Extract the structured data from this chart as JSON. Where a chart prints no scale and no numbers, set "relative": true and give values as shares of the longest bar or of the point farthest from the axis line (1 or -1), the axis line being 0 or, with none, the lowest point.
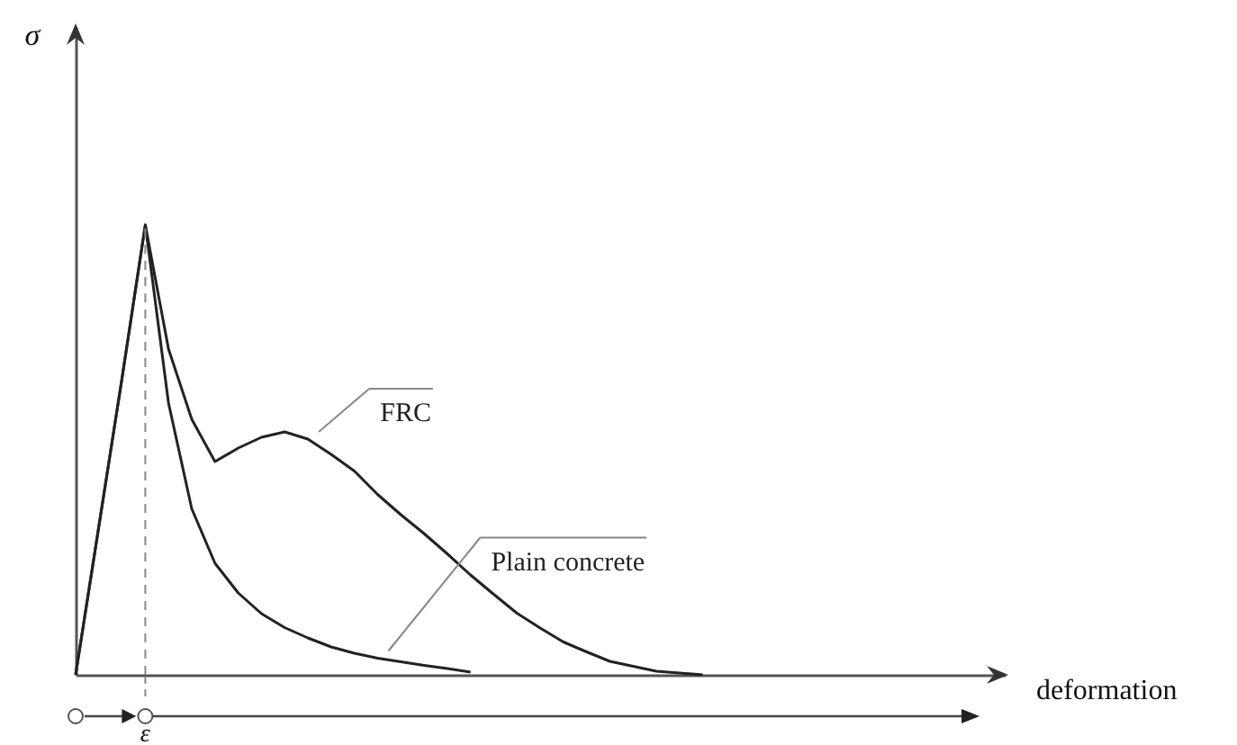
{
  "chart_data": {
    "type": "line",
    "relative": true,
    "xlabel": "deformation",
    "marker": "none",
    "line_style": "solid",
    "annotations": [
      "σ",
      "ε"
    ],
    "categories": [
      null,
      null,
      null,
      null,
      null,
      null,
      null,
      null,
      null,
      null,
      null,
      null,
      null,
      null,
      null,
      null,
      null,
      null,
      null,
      null,
      null,
      null,
      null,
      null,
      null,
      null,
      null,
      null,
      null,
      null,
      null,
      null,
      null,
      null,
      null,
      null,
      null,
      null,
      null,
      null,
      null
    ],
    "series": [
      {
        "name": "FRC",
        "color": "#222222",
        "values": [
          0,
          0.33,
          0.66,
          1,
          0.724,
          0.568,
          0.474,
          0.504,
          0.528,
          0.54,
          0.524,
          0.49,
          0.453,
          0.401,
          0.356,
          0.314,
          0.269,
          0.222,
          0.179,
          0.137,
          0.104,
          0.073,
          0.051,
          0.03,
          0.019,
          0.008,
          0.004,
          0,
          null,
          null,
          null,
          null,
          null,
          null,
          null,
          null,
          null,
          null,
          null,
          null,
          null
        ]
      },
      {
        "name": "Plain concrete",
        "color": "#222222",
        "values": [
          0,
          0.33,
          0.66,
          1,
          0.604,
          0.369,
          0.248,
          0.182,
          0.136,
          0.105,
          0.082,
          0.062,
          0.048,
          0.037,
          0.029,
          0.021,
          0.014,
          0.006,
          null,
          null,
          null,
          null,
          null,
          null,
          null,
          null,
          null,
          null,
          null,
          null,
          null,
          null,
          null,
          null,
          null,
          null,
          null,
          null,
          null,
          null,
          null
        ]
      }
    ]
  }
}
